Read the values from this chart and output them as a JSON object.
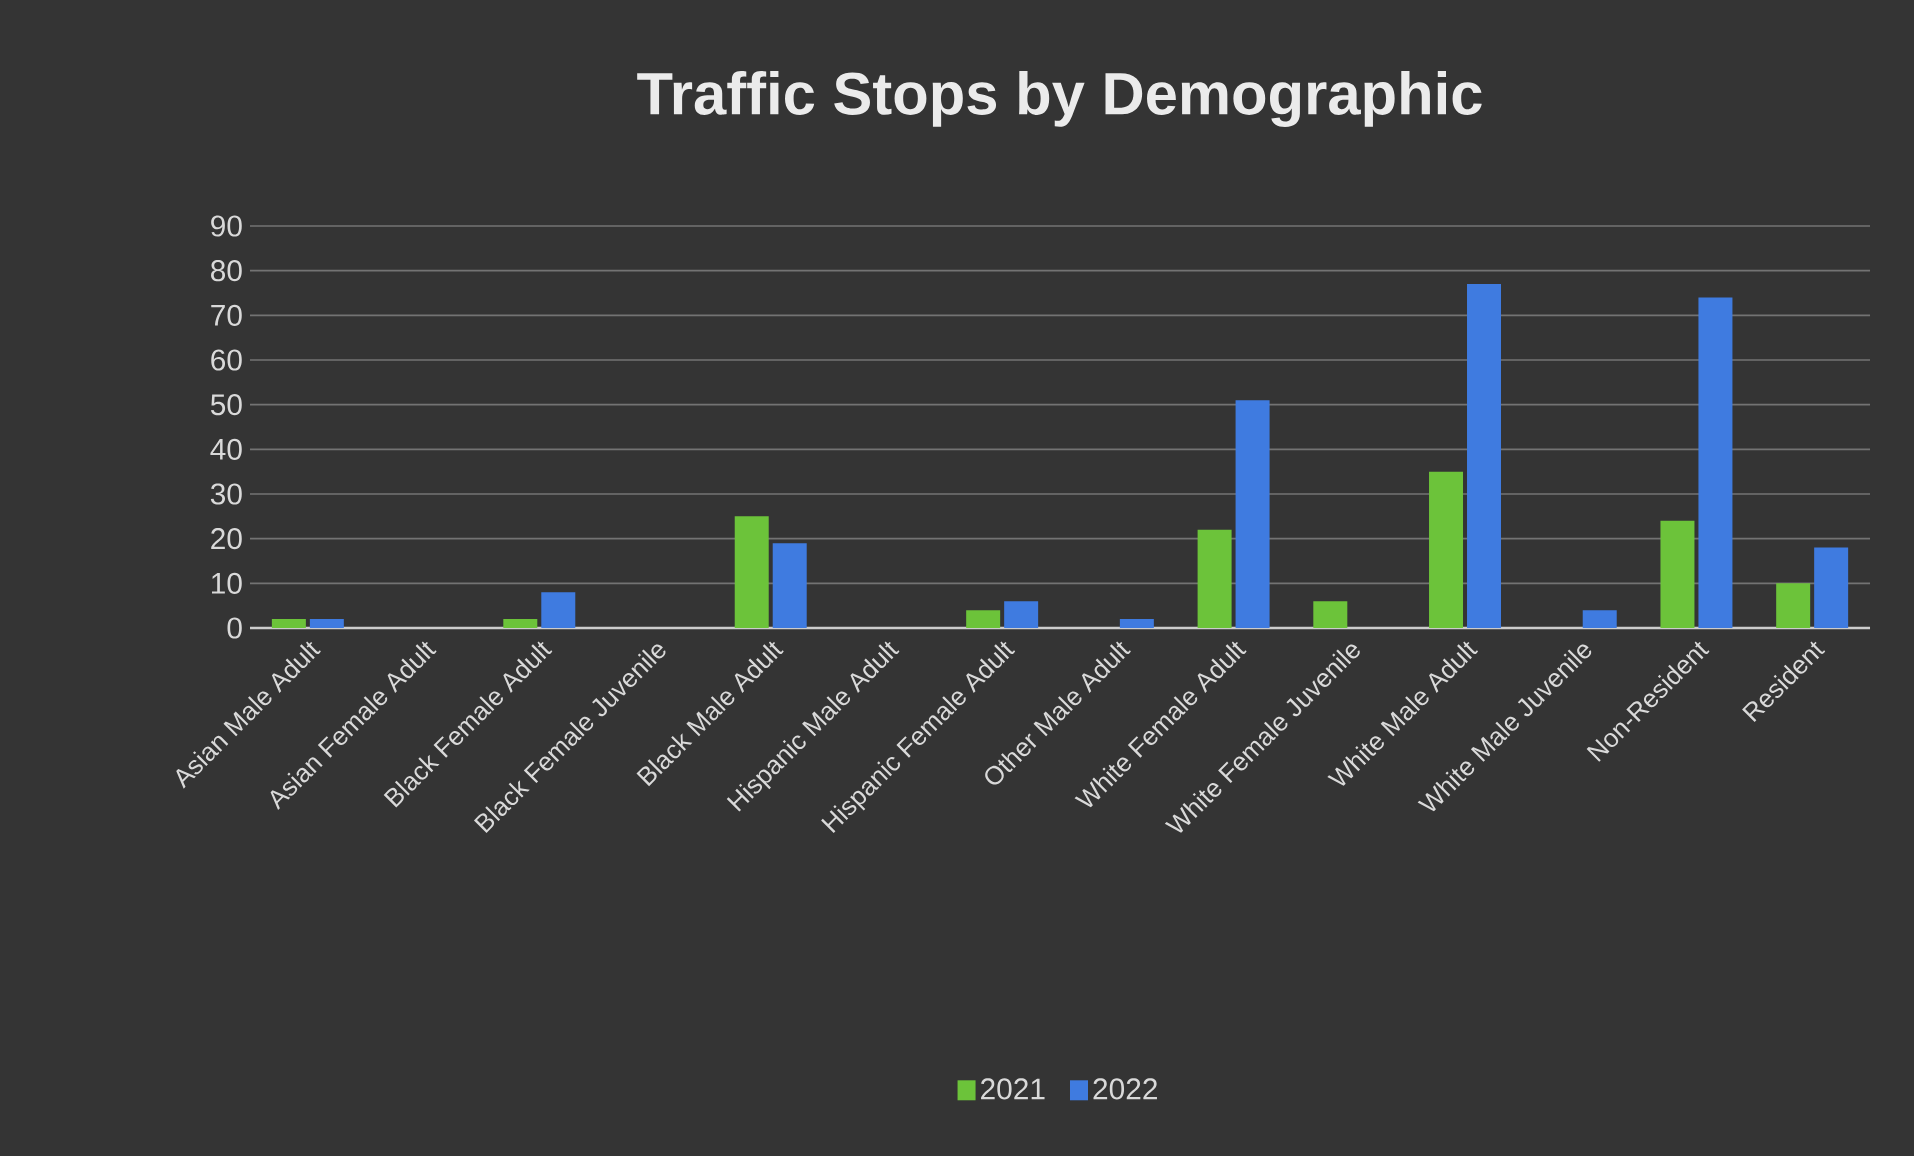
{
  "chart_data": {
    "type": "bar",
    "title": "Traffic Stops by Demographic",
    "categories": [
      "Asian Male Adult",
      "Asian Female Adult",
      "Black Female Adult",
      "Black Female Juvenile",
      "Black Male Adult",
      "Hispanic Male Adult",
      "Hispanic Female Adult",
      "Other Male Adult",
      "White Female Adult",
      "White Female Juvenile",
      "White Male Adult",
      "White Male Juvenile",
      "Non-Resident",
      "Resident"
    ],
    "series": [
      {
        "name": "2021",
        "color": "#6cc33a",
        "values": [
          2,
          0,
          2,
          0,
          25,
          0,
          4,
          0,
          22,
          6,
          35,
          0,
          24,
          10
        ]
      },
      {
        "name": "2022",
        "color": "#3f7be0",
        "values": [
          2,
          0,
          8,
          0,
          19,
          0,
          6,
          2,
          51,
          0,
          77,
          4,
          74,
          18
        ]
      }
    ],
    "ylim": [
      0,
      90
    ],
    "yticks": [
      0,
      10,
      20,
      30,
      40,
      50,
      60,
      70,
      80,
      90
    ],
    "grid": "y",
    "legend": "bottom"
  }
}
